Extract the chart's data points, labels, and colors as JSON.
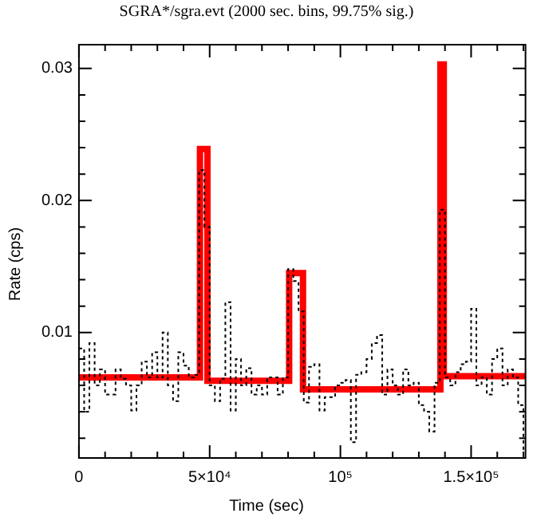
{
  "chart_data": {
    "type": "step",
    "title": "SGRA*/sgra.evt (2000 sec. bins, 99.75% sig.)",
    "xlabel": "Time (sec)",
    "ylabel": "Rate (cps)",
    "xlim": [
      0,
      170800
    ],
    "ylim": [
      0.0005,
      0.0318
    ],
    "xticks": [
      {
        "value": 0,
        "label": "0"
      },
      {
        "value": 10000,
        "label": null
      },
      {
        "value": 20000,
        "label": null
      },
      {
        "value": 30000,
        "label": null
      },
      {
        "value": 40000,
        "label": null
      },
      {
        "value": 50000,
        "label": "5×10⁴"
      },
      {
        "value": 60000,
        "label": null
      },
      {
        "value": 70000,
        "label": null
      },
      {
        "value": 80000,
        "label": null
      },
      {
        "value": 90000,
        "label": null
      },
      {
        "value": 100000,
        "label": "10⁵"
      },
      {
        "value": 110000,
        "label": null
      },
      {
        "value": 120000,
        "label": null
      },
      {
        "value": 130000,
        "label": null
      },
      {
        "value": 140000,
        "label": null
      },
      {
        "value": 150000,
        "label": "1.5×10⁵"
      },
      {
        "value": 160000,
        "label": null
      },
      {
        "value": 170000,
        "label": null
      }
    ],
    "yticks": [
      {
        "value": 0.002,
        "label": null
      },
      {
        "value": 0.004,
        "label": null
      },
      {
        "value": 0.006,
        "label": null
      },
      {
        "value": 0.008,
        "label": null
      },
      {
        "value": 0.01,
        "label": "0.01"
      },
      {
        "value": 0.012,
        "label": null
      },
      {
        "value": 0.014,
        "label": null
      },
      {
        "value": 0.016,
        "label": null
      },
      {
        "value": 0.018,
        "label": null
      },
      {
        "value": 0.02,
        "label": "0.02"
      },
      {
        "value": 0.022,
        "label": null
      },
      {
        "value": 0.024,
        "label": null
      },
      {
        "value": 0.026,
        "label": null
      },
      {
        "value": 0.028,
        "label": null
      },
      {
        "value": 0.03,
        "label": "0.03"
      }
    ],
    "grid": false,
    "series": [
      {
        "type": "step",
        "line_style": "dotted",
        "color": "#000000",
        "x": [
          0,
          2000,
          4000,
          6000,
          8000,
          10000,
          12000,
          14000,
          16000,
          18000,
          20000,
          22000,
          24000,
          26000,
          28000,
          30000,
          32000,
          34000,
          36000,
          38000,
          40000,
          42000,
          44000,
          46000,
          48000,
          50000,
          52000,
          54000,
          56000,
          58000,
          60000,
          62000,
          64000,
          66000,
          68000,
          70000,
          72000,
          74000,
          76000,
          78000,
          80000,
          82000,
          84000,
          86000,
          88000,
          90000,
          92000,
          94000,
          96000,
          98000,
          100000,
          102000,
          104000,
          106000,
          108000,
          110000,
          112000,
          114000,
          116000,
          118000,
          120000,
          122000,
          124000,
          126000,
          128000,
          130000,
          132000,
          134000,
          136000,
          138000,
          140000,
          142000,
          144000,
          146000,
          148000,
          150000,
          152000,
          154000,
          156000,
          158000,
          160000,
          162000,
          164000,
          166000,
          168000,
          170000
        ],
        "values": [
          0.0088,
          0.004,
          0.0092,
          0.006,
          0.0072,
          0.0053,
          0.0053,
          0.0072,
          0.0065,
          0.006,
          0.0041,
          0.006,
          0.0078,
          0.0066,
          0.0085,
          0.0066,
          0.01,
          0.006,
          0.0048,
          0.0085,
          0.0075,
          0.0066,
          0.0068,
          0.0223,
          0.018,
          0.006,
          0.0048,
          0.0065,
          0.0123,
          0.0041,
          0.008,
          0.006,
          0.0073,
          0.0053,
          0.006,
          0.0053,
          0.0066,
          0.0066,
          0.0053,
          0.0066,
          0.0148,
          0.0139,
          0.0116,
          0.0047,
          0.0074,
          0.0076,
          0.0041,
          0.0051,
          0.0051,
          0.006,
          0.0062,
          0.0064,
          0.0017,
          0.0068,
          0.007,
          0.008,
          0.0092,
          0.0098,
          0.0053,
          0.0072,
          0.006,
          0.0053,
          0.0072,
          0.006,
          0.0062,
          0.0045,
          0.004,
          0.0025,
          0.0062,
          0.0193,
          0.0066,
          0.006,
          0.007,
          0.0076,
          0.0078,
          0.0118,
          0.006,
          0.0066,
          0.0053,
          0.008,
          0.0088,
          0.006,
          0.0072,
          0.0066,
          0.0045,
          0.001
        ]
      },
      {
        "type": "step",
        "line_style": "solid",
        "color": "#ff0000",
        "x": [
          0,
          46300,
          49150,
          80400,
          85700,
          138250,
          139550,
          170800
        ],
        "values": [
          0.0066,
          0.0239,
          0.00635,
          0.0145,
          0.0057,
          0.0303,
          0.0067,
          0.0067
        ]
      }
    ]
  }
}
